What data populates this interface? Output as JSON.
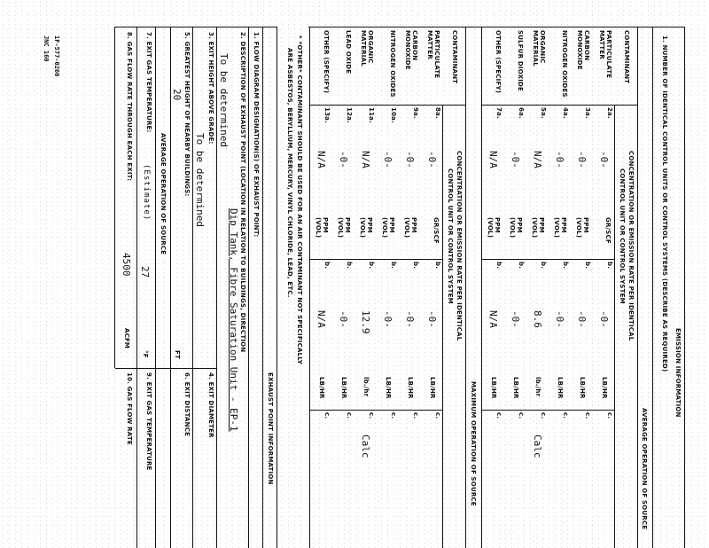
{
  "side_codes": [
    "1F-577-0260",
    "JNC 160"
  ],
  "emission": {
    "title": "EMISSION INFORMATION",
    "item1_label": "1. NUMBER OF IDENTICAL CONTROL UNITS OR CONTROL SYSTEMS (DESCRIBE AS REQUIRED)",
    "avg_section": "AVERAGE OPERATION OF SOURCE",
    "max_section": "MAXIMUM OPERATION OF SOURCE",
    "contaminant_header": "CONTAMINANT",
    "concentration_header": "CONCENTRATION OR EMISSION RATE PER IDENTICAL",
    "concentration_header2": "CONTROL UNIT OR CONTROL SYSTEM",
    "avg_rows": [
      {
        "name": "PARTICULATE MATTER",
        "a_no": "2a.",
        "a_val": "-0-",
        "a_unit": "GR/SCF",
        "b_no": "b.",
        "b_val": "-0-",
        "b_unit": "LB/HR",
        "c_no": "c.",
        "c_val": ""
      },
      {
        "name": "CARBON MONOXIDE",
        "a_no": "3a.",
        "a_val": "-0-",
        "a_unit": "PPM (VOL)",
        "b_no": "b.",
        "b_val": "-0-",
        "b_unit": "LB/HR",
        "c_no": "c.",
        "c_val": ""
      },
      {
        "name": "NITROGEN OXIDES",
        "a_no": "4a.",
        "a_val": "-0-",
        "a_unit": "PPM (VOL)",
        "b_no": "b.",
        "b_val": "-0-",
        "b_unit": "LB/HR",
        "c_no": "c.",
        "c_val": ""
      },
      {
        "name": "ORGANIC MATERIAL",
        "a_no": "5a.",
        "a_val": "N/A",
        "a_unit": "PPM (VOL)",
        "b_no": "b.",
        "b_val": "8.6",
        "b_unit": "lb./hr",
        "c_no": "c.",
        "c_val": "Calc"
      },
      {
        "name": "SULFUR DIOXIDE",
        "a_no": "6a.",
        "a_val": "-0-",
        "a_unit": "PPM (VOL)",
        "b_no": "b.",
        "b_val": "-0-",
        "b_unit": "LB/HR",
        "c_no": "c.",
        "c_val": ""
      },
      {
        "name": "OTHER (SPECIFY)",
        "a_no": "7a.",
        "a_val": "N/A",
        "a_unit": "PPM (VOL)",
        "b_no": "b.",
        "b_val": "N/A",
        "b_unit": "LB/HR",
        "c_no": "c.",
        "c_val": ""
      }
    ],
    "max_rows": [
      {
        "name": "PARTICULATE MATTER",
        "a_no": "8a.",
        "a_val": "-0-",
        "a_unit": "GR/SCF",
        "b_no": "b.",
        "b_val": "-0-",
        "b_unit": "LB/HR",
        "c_no": "c.",
        "c_val": ""
      },
      {
        "name": "CARBON MONOXIDE",
        "a_no": "9a.",
        "a_val": "-0-",
        "a_unit": "PPM (VOL)",
        "b_no": "b.",
        "b_val": "-0-",
        "b_unit": "LB/HR",
        "c_no": "c.",
        "c_val": ""
      },
      {
        "name": "NITROGEN OXIDES",
        "a_no": "10a.",
        "a_val": "-0-",
        "a_unit": "PPM (VOL)",
        "b_no": "b.",
        "b_val": "-0-",
        "b_unit": "LB/HR",
        "c_no": "c.",
        "c_val": ""
      },
      {
        "name": "ORGANIC MATERIAL",
        "a_no": "11a.",
        "a_val": "N/A",
        "a_unit": "PPM (VOL)",
        "b_no": "b.",
        "b_val": "12.9",
        "b_unit": "lb./hr",
        "c_no": "c.",
        "c_val": "Calc"
      },
      {
        "name": "LEAD OXIDE",
        "a_no": "12a.",
        "a_val": "-0-",
        "a_unit": "PPM (VOL)",
        "b_no": "b.",
        "b_val": "-0-",
        "b_unit": "LB/HR",
        "c_no": "c.",
        "c_val": ""
      },
      {
        "name": "OTHER (SPECIFY)",
        "a_no": "13a.",
        "a_val": "N/A",
        "a_unit": "PPM (VOL)",
        "b_no": "b.",
        "b_val": "N/A",
        "b_unit": "LB/HR",
        "c_no": "c.",
        "c_val": ""
      }
    ],
    "footnote1": "* *OTHER* CONTAMINANT SHOULD BE USED FOR AN AIR CONTAMINANT NOT SPECIFICALLY",
    "footnote2": "ARE ASBESTOS, BERYLLIUM, MERCURY, VINYL CHLORIDE, LEAD, ETC."
  },
  "exhaust": {
    "title": "EXHAUST POINT INFORMATION",
    "item1": "1. FLOW DIAGRAM DESIGNATION(S) OF EXHAUST POINT:",
    "item1_val": "Dip Tank, Fibre Saturation Unit - EP-1",
    "item2": "2. DESCRIPTION OF EXHAUST POINT (LOCATION IN RELATION TO BUILDINGS, DIRECTION",
    "item2_val": "To be determined",
    "item3": "3. EXIT HEIGHT ABOVE GRADE:",
    "item3_val": "To be determined",
    "item4": "4. EXIT DIAMETER",
    "item5": "5. GREATEST HEIGHT OF NEARBY BUILDINGS:",
    "item5_val": "20",
    "item5_unit": "FT",
    "item6": "6. EXIT DISTANCE",
    "avg_section": "AVERAGE OPERATION OF SOURCE",
    "item7": "7. EXIT GAS TEMPERATURE:",
    "item7_note": "(Estimate)",
    "item7_val": "27",
    "item7_unit": "°F",
    "item9": "9. EXIT GAS TEMPERATURE",
    "item8": "8. GAS FLOW RATE THROUGH EACH EXIT:",
    "item8_val": "4500",
    "item8_unit": "ACFM",
    "item10": "10. GAS FLOW RATE"
  }
}
